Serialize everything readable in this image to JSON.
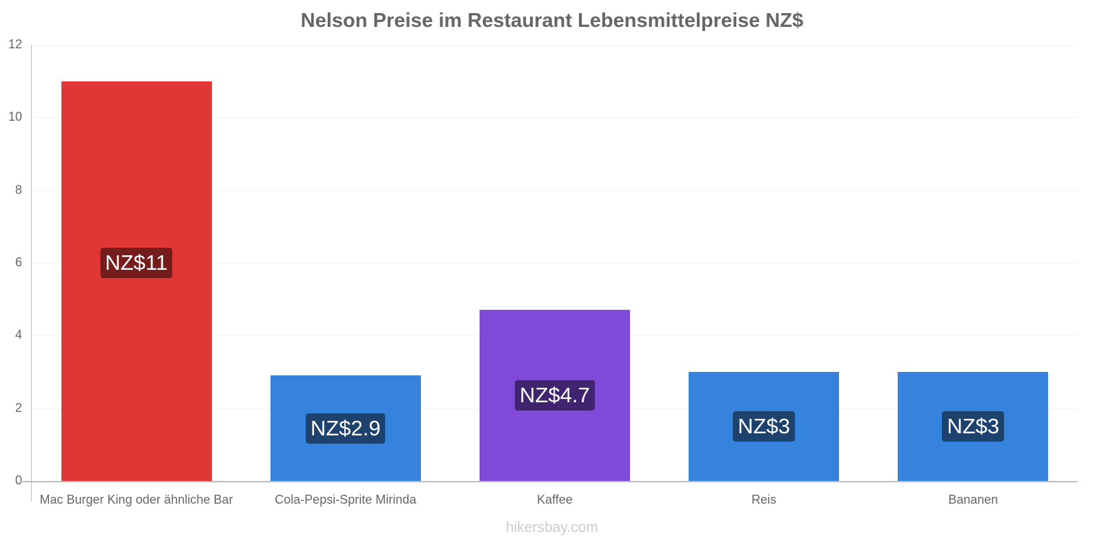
{
  "chart_data": {
    "type": "bar",
    "title": "Nelson Preise im Restaurant Lebensmittelpreise NZ$",
    "categories": [
      "Mac Burger King oder ähnliche Bar",
      "Cola-Pepsi-Sprite Mirinda",
      "Kaffee",
      "Reis",
      "Bananen"
    ],
    "values": [
      11,
      2.9,
      4.7,
      3,
      3
    ],
    "value_labels": [
      "NZ$11",
      "NZ$2.9",
      "NZ$4.7",
      "NZ$3",
      "NZ$3"
    ],
    "bar_colors": [
      "#e03636",
      "#3583dc",
      "#8149d8",
      "#3583dc",
      "#3583dc"
    ],
    "label_bg_colors": [
      "#751c1c",
      "#1d426e",
      "#412470",
      "#1d426e",
      "#1d426e"
    ],
    "xlabel": "",
    "ylabel": "",
    "ylim": [
      0,
      12
    ],
    "yticks": [
      "0",
      "2",
      "4",
      "6",
      "8",
      "10",
      "12"
    ],
    "grid": true,
    "legend": null
  },
  "footer": {
    "source": "hikersbay.com"
  }
}
